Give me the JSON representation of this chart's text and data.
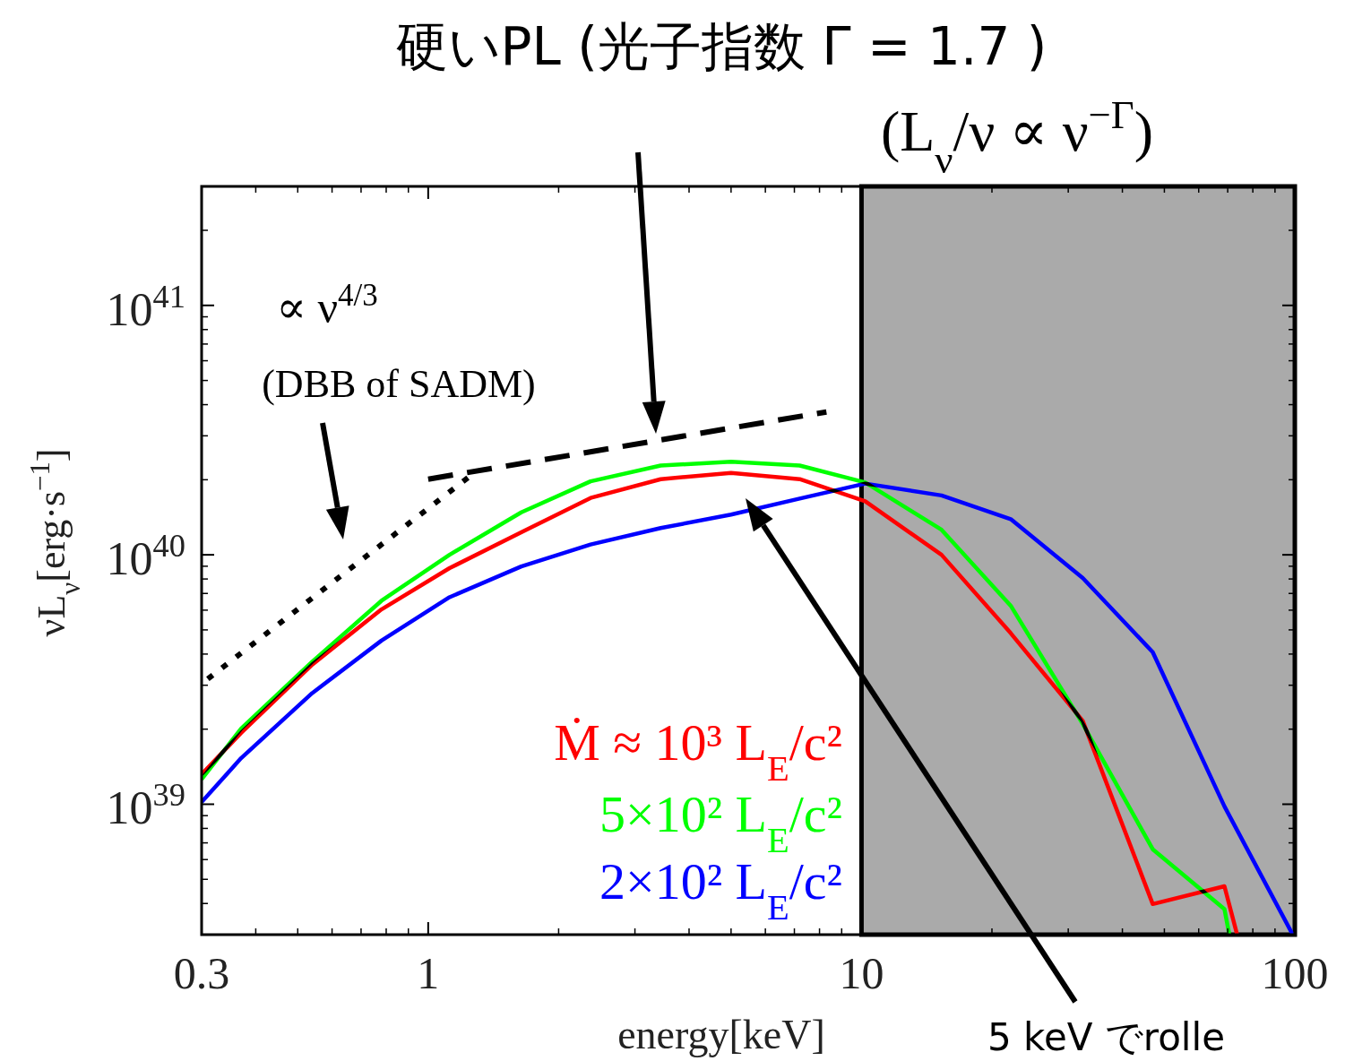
{
  "chart_data": {
    "type": "line",
    "xlabel": "energy[keV]",
    "ylabel": "νL$_{ν}$[erg·s$^{−1}$]",
    "log": "xy",
    "xlim": [
      0.3,
      100
    ],
    "xticks": [
      0.3,
      1,
      10,
      100
    ],
    "ylim": [
      3e+38,
      3e+41
    ],
    "yticks": [
      {
        "value": 1e+39,
        "label": "10$^{39}$"
      },
      {
        "value": 1e+40,
        "label": "10$^{40}$"
      },
      {
        "value": 1e+41,
        "label": "10$^{41}$"
      }
    ],
    "bands": [
      {
        "axis": "x",
        "from": 10,
        "to": 100,
        "color": "#aaaaaa"
      }
    ],
    "series": [
      {
        "name": "Ṁ ≈ 10³ L$_{E}$/c²",
        "color": "#ff0000",
        "line_style": "solid",
        "x": [
          0.3,
          0.37,
          0.54,
          0.78,
          1.12,
          1.64,
          2.37,
          3.44,
          5.0,
          7.2,
          10.2,
          15.3,
          22.1,
          32.4,
          47,
          68.8,
          73.6
        ],
        "values": [
          1.32e+39,
          1.93e+39,
          3.63e+39,
          6.04e+39,
          8.84e+39,
          1.23e+40,
          1.69e+40,
          2.01e+40,
          2.13e+40,
          2.01e+40,
          1.64e+40,
          1e+40,
          4.85e+39,
          2.16e+39,
          3.98e+38,
          4.69e+38,
          3e+38
        ]
      },
      {
        "name": "5×10² L$_{E}$/c²",
        "color": "#00ff00",
        "line_style": "solid",
        "x": [
          0.3,
          0.37,
          0.54,
          0.78,
          1.12,
          1.64,
          2.37,
          3.44,
          5.0,
          7.2,
          10.2,
          15.3,
          22.1,
          32.4,
          47,
          68.8,
          70.6
        ],
        "values": [
          1.26e+39,
          2.01e+39,
          3.73e+39,
          6.54e+39,
          1e+40,
          1.48e+40,
          1.97e+40,
          2.28e+40,
          2.36e+40,
          2.28e+40,
          1.95e+40,
          1.26e+40,
          6.25e+39,
          2.1e+39,
          6.6e+38,
          3.8e+38,
          3e+38
        ]
      },
      {
        "name": "2×10² L$_{E}$/c²",
        "color": "#0000ff",
        "line_style": "solid",
        "x": [
          0.3,
          0.37,
          0.54,
          0.78,
          1.12,
          1.64,
          2.37,
          3.44,
          5.0,
          7.2,
          10.2,
          15.3,
          22.1,
          32.4,
          47,
          68.8,
          98.9
        ],
        "values": [
          1.02e+39,
          1.53e+39,
          2.79e+39,
          4.53e+39,
          6.76e+39,
          8.98e+39,
          1.1e+40,
          1.28e+40,
          1.45e+40,
          1.68e+40,
          1.93e+40,
          1.73e+40,
          1.39e+40,
          8.07e+39,
          4.07e+39,
          9.8e+38,
          3e+38
        ]
      },
      {
        "color": "#000000",
        "line_style": "dotted",
        "x": [
          0.31,
          1.24
        ],
        "values": [
          3.18e+39,
          2.05e+40
        ]
      },
      {
        "color": "#000000",
        "line_style": "dashed",
        "x": [
          1.0,
          8.3
        ],
        "values": [
          2.01e+40,
          3.74e+40
        ]
      }
    ],
    "annotations": [
      "硬いPL (光子指数 Γ = 1.7 )",
      "(L$_{ν}$/ν ∝ ν$^{−Γ}$)",
      "∝ ν$^{4/3}$",
      "(DBB of SADM)",
      "5 keV でrolle"
    ]
  }
}
